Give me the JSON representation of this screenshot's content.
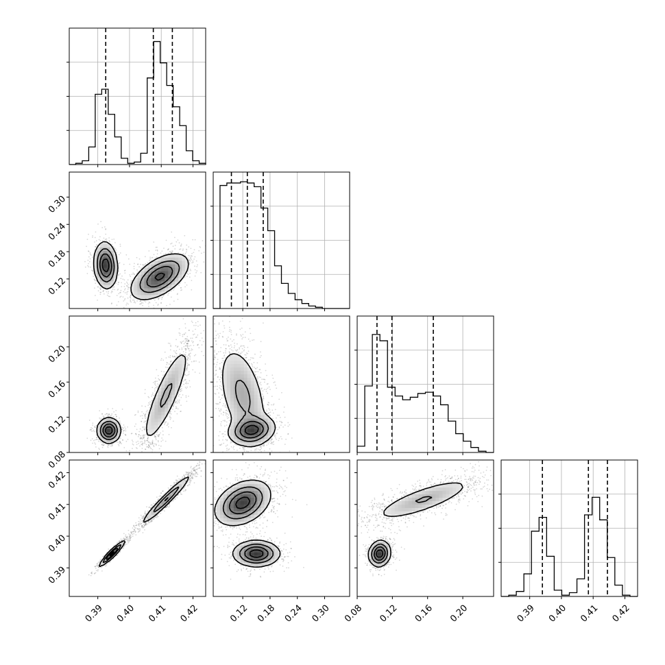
{
  "chart_data": {
    "type": "corner",
    "parameters": 4,
    "grid": true,
    "colors": {
      "ink": "#000000",
      "grid": "#b0b0b0",
      "contour_fill": "#777777"
    },
    "ticks": [
      {
        "values": [
          0.39,
          0.4,
          0.41,
          0.42
        ],
        "labels": [
          "0.39",
          "0.40",
          "0.41",
          "0.42"
        ],
        "range": [
          0.381,
          0.424
        ]
      },
      {
        "values": [
          0.12,
          0.18,
          0.24,
          0.3
        ],
        "labels": [
          "0.12",
          "0.18",
          "0.24",
          "0.30"
        ],
        "range": [
          0.055,
          0.355
        ]
      },
      {
        "values": [
          0.08,
          0.12,
          0.16,
          0.2
        ],
        "labels": [
          "0.08",
          "0.12",
          "0.16",
          "0.20"
        ],
        "range": [
          0.08,
          0.235
        ]
      },
      {
        "values": [
          0.39,
          0.4,
          0.41,
          0.42
        ],
        "labels": [
          "0.39",
          "0.40",
          "0.41",
          "0.42"
        ],
        "range": [
          0.381,
          0.424
        ]
      }
    ],
    "histograms": [
      {
        "param": 0,
        "quantiles": [
          0.3925,
          0.4075,
          0.4135
        ],
        "heights": [
          0.0,
          0.01,
          0.03,
          0.14,
          0.56,
          0.6,
          0.4,
          0.22,
          0.05,
          0.01,
          0.02,
          0.09,
          0.69,
          0.98,
          0.81,
          0.63,
          0.46,
          0.31,
          0.11,
          0.03,
          0.01
        ]
      },
      {
        "param": 1,
        "quantiles": [
          0.095,
          0.13,
          0.165
        ],
        "heights": [
          0.0,
          0.98,
          1.0,
          1.0,
          1.01,
          1.0,
          0.97,
          0.8,
          0.62,
          0.34,
          0.2,
          0.12,
          0.07,
          0.04,
          0.02,
          0.01,
          0.0,
          0.0,
          0.0,
          0.0
        ]
      },
      {
        "param": 2,
        "quantiles": [
          0.1025,
          0.1195,
          0.1665
        ],
        "heights": [
          0.05,
          0.53,
          0.94,
          0.89,
          0.52,
          0.45,
          0.42,
          0.44,
          0.47,
          0.48,
          0.45,
          0.38,
          0.25,
          0.15,
          0.09,
          0.04,
          0.01,
          0.0
        ]
      },
      {
        "param": 3,
        "quantiles": [
          0.394,
          0.4085,
          0.4145
        ],
        "heights": [
          0.0,
          0.01,
          0.04,
          0.18,
          0.52,
          0.63,
          0.32,
          0.05,
          0.01,
          0.03,
          0.14,
          0.65,
          0.79,
          0.61,
          0.31,
          0.09,
          0.01,
          0.0
        ]
      }
    ],
    "scatter_clusters": [
      {
        "x": 0,
        "y": 1,
        "modes": [
          {
            "cx": 0.3925,
            "cy": 0.15,
            "sx": 0.0018,
            "sy": 0.025,
            "rho": -0.1,
            "w": 0.35
          },
          {
            "cx": 0.4095,
            "cy": 0.125,
            "sx": 0.0045,
            "sy": 0.025,
            "rho": 0.55,
            "w": 0.65
          }
        ]
      },
      {
        "x": 0,
        "y": 2,
        "modes": [
          {
            "cx": 0.3935,
            "cy": 0.105,
            "sx": 0.0018,
            "sy": 0.007,
            "rho": 0.0,
            "w": 0.35
          },
          {
            "cx": 0.4115,
            "cy": 0.145,
            "sx": 0.004,
            "sy": 0.03,
            "rho": 0.85,
            "w": 0.65
          }
        ]
      },
      {
        "x": 1,
        "y": 2,
        "modes": [
          {
            "cx": 0.14,
            "cy": 0.105,
            "sx": 0.025,
            "sy": 0.008,
            "rho": 0.2,
            "w": 0.35
          },
          {
            "cx": 0.12,
            "cy": 0.145,
            "sx": 0.028,
            "sy": 0.03,
            "rho": -0.45,
            "w": 0.65
          }
        ]
      },
      {
        "x": 0,
        "y": 3,
        "modes": [
          {
            "cx": 0.3945,
            "cy": 0.3945,
            "sx": 0.002,
            "sy": 0.002,
            "rho": 0.95,
            "w": 0.35
          },
          {
            "cx": 0.4115,
            "cy": 0.4115,
            "sx": 0.004,
            "sy": 0.004,
            "rho": 0.97,
            "w": 0.65
          }
        ]
      },
      {
        "x": 1,
        "y": 3,
        "modes": [
          {
            "cx": 0.15,
            "cy": 0.3945,
            "sx": 0.025,
            "sy": 0.002,
            "rho": 0.0,
            "w": 0.35
          },
          {
            "cx": 0.12,
            "cy": 0.4105,
            "sx": 0.03,
            "sy": 0.0035,
            "rho": 0.35,
            "w": 0.65
          }
        ]
      },
      {
        "x": 2,
        "y": 3,
        "modes": [
          {
            "cx": 0.1055,
            "cy": 0.3945,
            "sx": 0.006,
            "sy": 0.002,
            "rho": 0.1,
            "w": 0.35
          },
          {
            "cx": 0.155,
            "cy": 0.4115,
            "sx": 0.03,
            "sy": 0.0035,
            "rho": 0.8,
            "w": 0.65
          }
        ]
      }
    ]
  }
}
